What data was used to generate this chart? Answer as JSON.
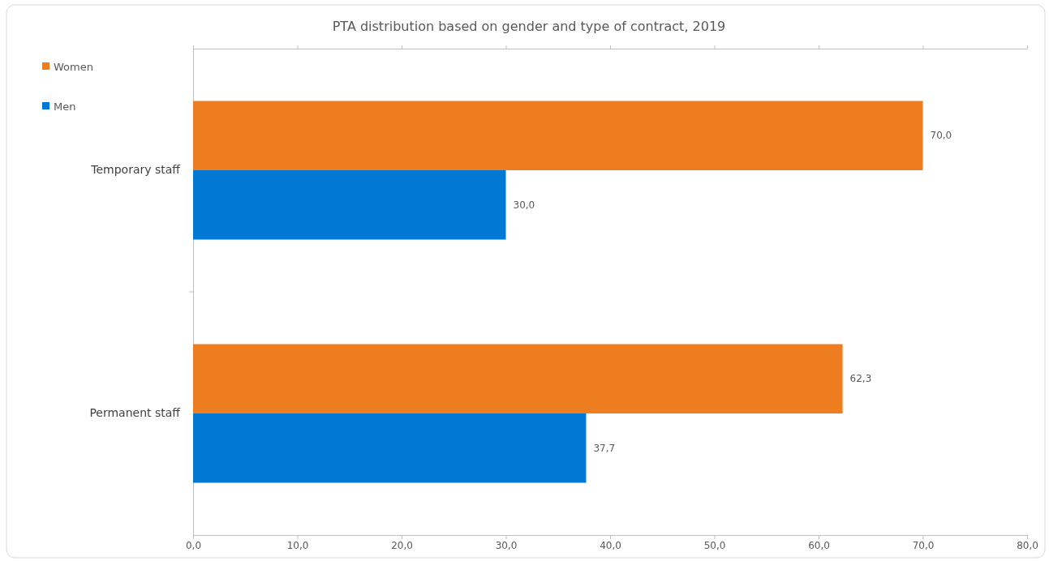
{
  "chart_data": {
    "type": "bar",
    "orientation": "horizontal",
    "title": "PTA distribution based on gender and type of contract, 2019",
    "categories": [
      "Temporary staff",
      "Permanent staff"
    ],
    "series": [
      {
        "name": "Women",
        "color": "#ee7d1f",
        "values": [
          70.0,
          62.3
        ],
        "value_labels": [
          "70,0",
          "62,3"
        ]
      },
      {
        "name": "Men",
        "color": "#0078d4",
        "values": [
          30.0,
          37.7
        ],
        "value_labels": [
          "30,0",
          "37,7"
        ]
      }
    ],
    "xlim": [
      0,
      80
    ],
    "xticks": [
      {
        "value": 0,
        "label": "0,0"
      },
      {
        "value": 10,
        "label": "10,0"
      },
      {
        "value": 20,
        "label": "20,0"
      },
      {
        "value": 30,
        "label": "30,0"
      },
      {
        "value": 40,
        "label": "40,0"
      },
      {
        "value": 50,
        "label": "50,0"
      },
      {
        "value": 60,
        "label": "60,0"
      },
      {
        "value": 70,
        "label": "70,0"
      },
      {
        "value": 80,
        "label": "80,0"
      }
    ],
    "legend": "top left",
    "grid": false
  }
}
